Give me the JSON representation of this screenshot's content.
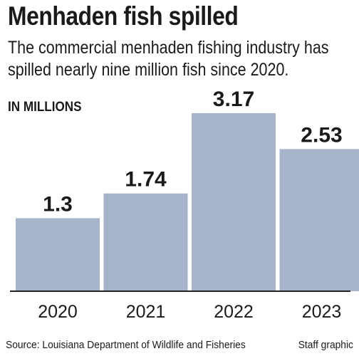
{
  "header": {
    "title": "Menhaden fish spilled",
    "subtitle": "The commercial menhaden fishing industry has spilled nearly nine million fish since 2020."
  },
  "chart_data": {
    "type": "bar",
    "unit_label": "IN MILLIONS",
    "categories": [
      "2020",
      "2021",
      "2022",
      "2023"
    ],
    "values": [
      1.3,
      1.74,
      3.17,
      2.53
    ],
    "value_labels": [
      "1.3",
      "1.74",
      "3.17",
      "2.53"
    ],
    "ylim": [
      0,
      3.3
    ],
    "grid": false,
    "bar_color": "#a6b3ca",
    "baseline_color": "#222222"
  },
  "footer": {
    "source": "Source: Louisiana Department of Wildlife and Fisheries",
    "credit": "Staff graphic"
  }
}
